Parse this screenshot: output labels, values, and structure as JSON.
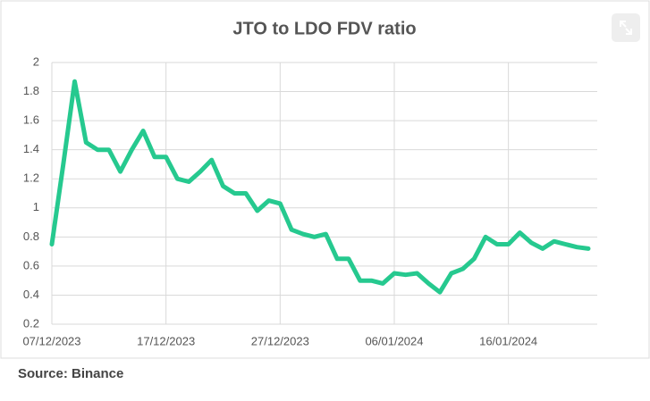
{
  "chart_data": {
    "type": "line",
    "title": "JTO to LDO FDV ratio",
    "source": "Source: Binance",
    "x": [
      "2023-12-07",
      "2023-12-08",
      "2023-12-09",
      "2023-12-10",
      "2023-12-11",
      "2023-12-12",
      "2023-12-13",
      "2023-12-14",
      "2023-12-15",
      "2023-12-16",
      "2023-12-17",
      "2023-12-18",
      "2023-12-19",
      "2023-12-20",
      "2023-12-21",
      "2023-12-22",
      "2023-12-23",
      "2023-12-24",
      "2023-12-25",
      "2023-12-26",
      "2023-12-27",
      "2023-12-28",
      "2023-12-29",
      "2023-12-30",
      "2023-12-31",
      "2024-01-01",
      "2024-01-02",
      "2024-01-03",
      "2024-01-04",
      "2024-01-05",
      "2024-01-06",
      "2024-01-07",
      "2024-01-08",
      "2024-01-09",
      "2024-01-10",
      "2024-01-11",
      "2024-01-12",
      "2024-01-13",
      "2024-01-14",
      "2024-01-15",
      "2024-01-16",
      "2024-01-17",
      "2024-01-18",
      "2024-01-19",
      "2024-01-20",
      "2024-01-21",
      "2024-01-22",
      "2024-01-23"
    ],
    "series": [
      {
        "name": "JTO/LDO FDV ratio",
        "color": "#26c98f",
        "values": [
          0.75,
          1.3,
          1.87,
          1.45,
          1.4,
          1.4,
          1.25,
          1.4,
          1.53,
          1.35,
          1.35,
          1.2,
          1.18,
          1.25,
          1.33,
          1.15,
          1.1,
          1.1,
          0.98,
          1.05,
          1.03,
          0.85,
          0.82,
          0.8,
          0.82,
          0.65,
          0.65,
          0.5,
          0.5,
          0.48,
          0.55,
          0.54,
          0.55,
          0.48,
          0.42,
          0.55,
          0.58,
          0.65,
          0.8,
          0.75,
          0.75,
          0.83,
          0.76,
          0.72,
          0.77,
          0.75,
          0.73,
          0.72
        ]
      }
    ],
    "xlim": [
      "2023-12-07",
      "2024-01-23"
    ],
    "xticks": [
      {
        "value": "2023-12-07",
        "label": "07/12/2023"
      },
      {
        "value": "2023-12-17",
        "label": "17/12/2023"
      },
      {
        "value": "2023-12-27",
        "label": "27/12/2023"
      },
      {
        "value": "2024-01-06",
        "label": "06/01/2024"
      },
      {
        "value": "2024-01-16",
        "label": "16/01/2024"
      }
    ],
    "ylim": [
      0.2,
      2
    ],
    "yticks": [
      0.2,
      0.4,
      0.6,
      0.8,
      1,
      1.2,
      1.4,
      1.6,
      1.8,
      2
    ],
    "grid": true
  }
}
